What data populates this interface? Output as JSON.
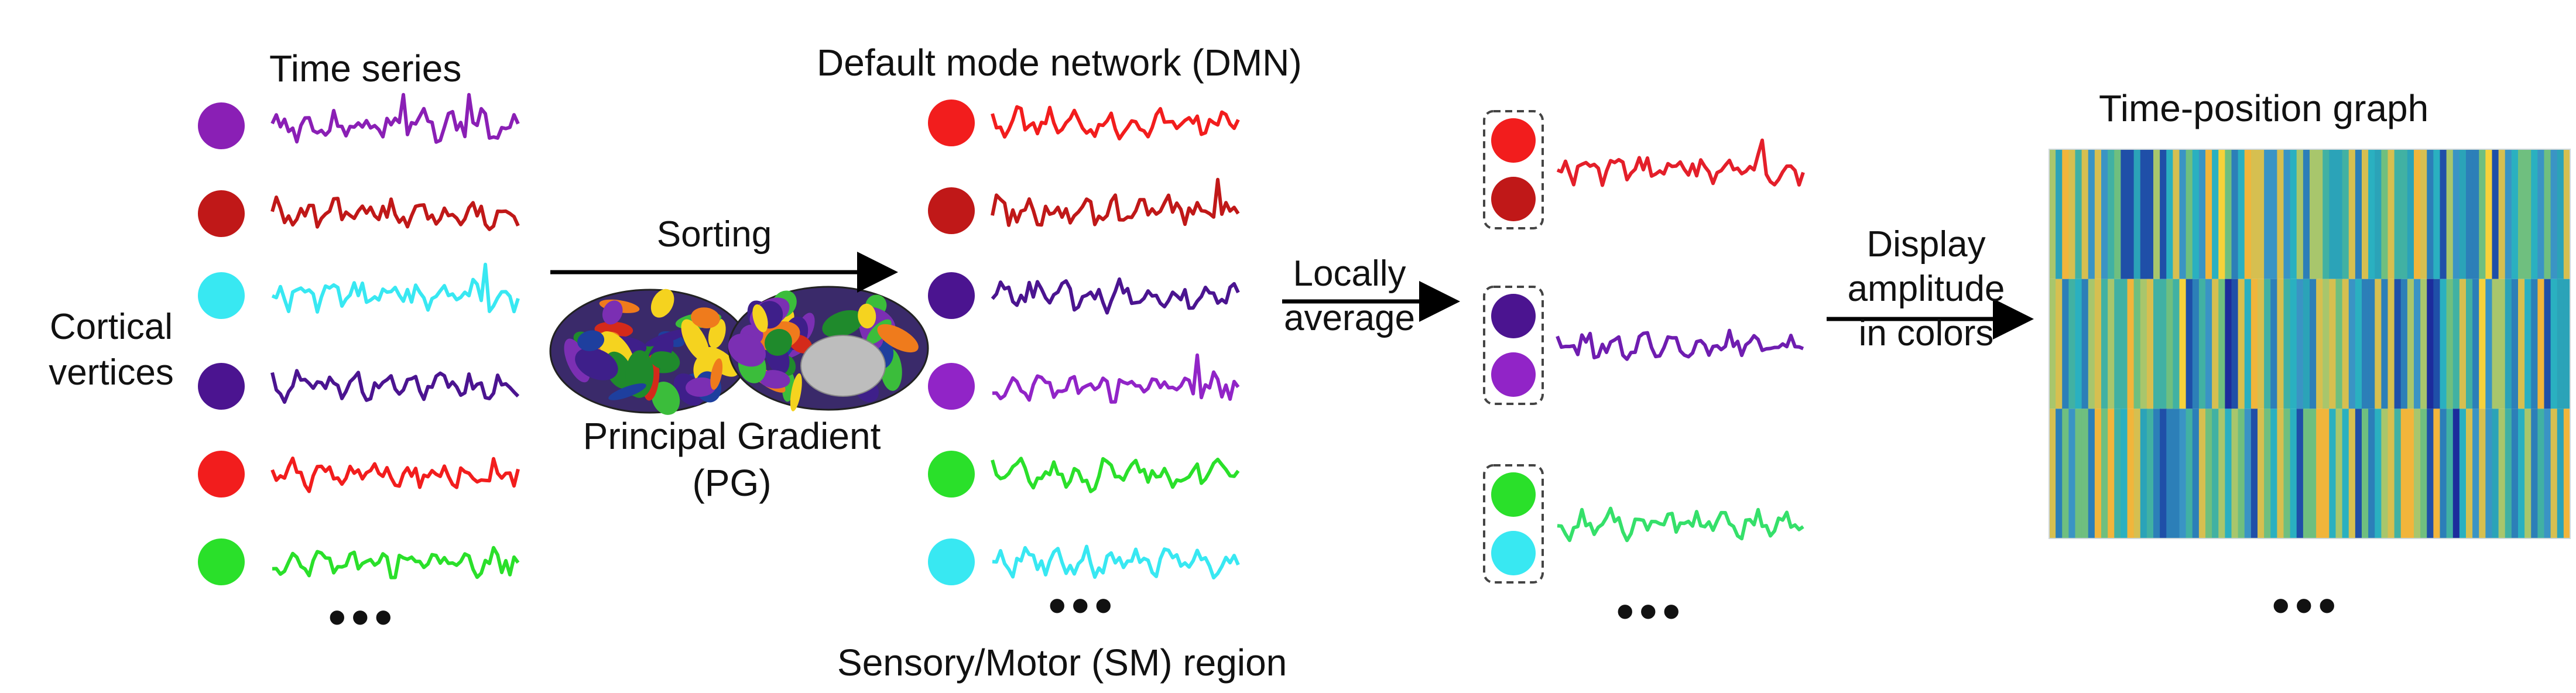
{
  "title_left": "Time series",
  "label_cortical": [
    "Cortical",
    "vertices"
  ],
  "arrow1_label": "Sorting",
  "pg_label": [
    "Principal Gradient",
    "(PG)"
  ],
  "dmn_label": "Default mode network (DMN)",
  "sm_label": "Sensory/Motor (SM) region",
  "arrow2_label": [
    "Locally",
    "average"
  ],
  "arrow3_label": [
    "Display",
    "amplitude",
    "in colors"
  ],
  "heatmap_title": "Time-position graph",
  "ellipsis": "•••",
  "colors": {
    "purple": "#8a1fb5",
    "darkred": "#c01818",
    "cyan": "#38e8f2",
    "indigo": "#4b1490",
    "red": "#f21d1d",
    "green": "#2ae02a",
    "violet": "#9124c7",
    "avg_red": "#e41f2a",
    "avg_purple": "#6f1db0",
    "avg_green": "#35e06a"
  },
  "left_series": [
    "purple",
    "darkred",
    "cyan",
    "indigo",
    "red",
    "green"
  ],
  "sorted_series": [
    "red",
    "darkred",
    "indigo",
    "violet",
    "green",
    "cyan"
  ],
  "averaged_groups": [
    {
      "dots": [
        "red",
        "darkred"
      ],
      "line": "avg_red"
    },
    {
      "dots": [
        "indigo",
        "violet"
      ],
      "line": "avg_purple"
    },
    {
      "dots": [
        "green",
        "cyan"
      ],
      "line": "avg_green"
    }
  ]
}
